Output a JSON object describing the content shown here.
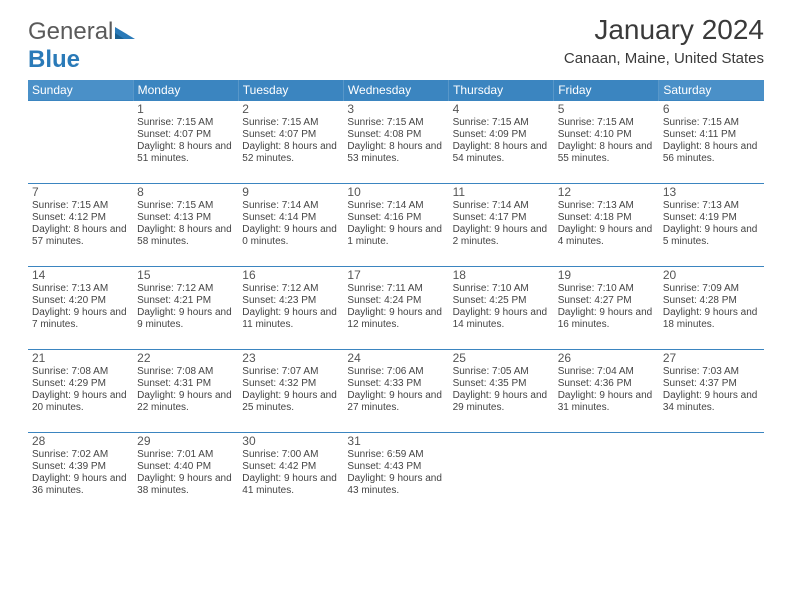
{
  "logo": {
    "text1": "General",
    "text2": "Blue"
  },
  "title": "January 2024",
  "subtitle": "Canaan, Maine, United States",
  "colors": {
    "header_outer": "#4a90c8",
    "header_inner": "#3b85c0",
    "row_border": "#3b85c0",
    "logo_gray": "#5a5a5a",
    "logo_blue": "#2a7ab8",
    "text": "#444444"
  },
  "day_headers": [
    "Sunday",
    "Monday",
    "Tuesday",
    "Wednesday",
    "Thursday",
    "Friday",
    "Saturday"
  ],
  "first_weekday": 1,
  "days": [
    {
      "n": "1",
      "sr": "7:15 AM",
      "ss": "4:07 PM",
      "dl": "8 hours and 51 minutes."
    },
    {
      "n": "2",
      "sr": "7:15 AM",
      "ss": "4:07 PM",
      "dl": "8 hours and 52 minutes."
    },
    {
      "n": "3",
      "sr": "7:15 AM",
      "ss": "4:08 PM",
      "dl": "8 hours and 53 minutes."
    },
    {
      "n": "4",
      "sr": "7:15 AM",
      "ss": "4:09 PM",
      "dl": "8 hours and 54 minutes."
    },
    {
      "n": "5",
      "sr": "7:15 AM",
      "ss": "4:10 PM",
      "dl": "8 hours and 55 minutes."
    },
    {
      "n": "6",
      "sr": "7:15 AM",
      "ss": "4:11 PM",
      "dl": "8 hours and 56 minutes."
    },
    {
      "n": "7",
      "sr": "7:15 AM",
      "ss": "4:12 PM",
      "dl": "8 hours and 57 minutes."
    },
    {
      "n": "8",
      "sr": "7:15 AM",
      "ss": "4:13 PM",
      "dl": "8 hours and 58 minutes."
    },
    {
      "n": "9",
      "sr": "7:14 AM",
      "ss": "4:14 PM",
      "dl": "9 hours and 0 minutes."
    },
    {
      "n": "10",
      "sr": "7:14 AM",
      "ss": "4:16 PM",
      "dl": "9 hours and 1 minute."
    },
    {
      "n": "11",
      "sr": "7:14 AM",
      "ss": "4:17 PM",
      "dl": "9 hours and 2 minutes."
    },
    {
      "n": "12",
      "sr": "7:13 AM",
      "ss": "4:18 PM",
      "dl": "9 hours and 4 minutes."
    },
    {
      "n": "13",
      "sr": "7:13 AM",
      "ss": "4:19 PM",
      "dl": "9 hours and 5 minutes."
    },
    {
      "n": "14",
      "sr": "7:13 AM",
      "ss": "4:20 PM",
      "dl": "9 hours and 7 minutes."
    },
    {
      "n": "15",
      "sr": "7:12 AM",
      "ss": "4:21 PM",
      "dl": "9 hours and 9 minutes."
    },
    {
      "n": "16",
      "sr": "7:12 AM",
      "ss": "4:23 PM",
      "dl": "9 hours and 11 minutes."
    },
    {
      "n": "17",
      "sr": "7:11 AM",
      "ss": "4:24 PM",
      "dl": "9 hours and 12 minutes."
    },
    {
      "n": "18",
      "sr": "7:10 AM",
      "ss": "4:25 PM",
      "dl": "9 hours and 14 minutes."
    },
    {
      "n": "19",
      "sr": "7:10 AM",
      "ss": "4:27 PM",
      "dl": "9 hours and 16 minutes."
    },
    {
      "n": "20",
      "sr": "7:09 AM",
      "ss": "4:28 PM",
      "dl": "9 hours and 18 minutes."
    },
    {
      "n": "21",
      "sr": "7:08 AM",
      "ss": "4:29 PM",
      "dl": "9 hours and 20 minutes."
    },
    {
      "n": "22",
      "sr": "7:08 AM",
      "ss": "4:31 PM",
      "dl": "9 hours and 22 minutes."
    },
    {
      "n": "23",
      "sr": "7:07 AM",
      "ss": "4:32 PM",
      "dl": "9 hours and 25 minutes."
    },
    {
      "n": "24",
      "sr": "7:06 AM",
      "ss": "4:33 PM",
      "dl": "9 hours and 27 minutes."
    },
    {
      "n": "25",
      "sr": "7:05 AM",
      "ss": "4:35 PM",
      "dl": "9 hours and 29 minutes."
    },
    {
      "n": "26",
      "sr": "7:04 AM",
      "ss": "4:36 PM",
      "dl": "9 hours and 31 minutes."
    },
    {
      "n": "27",
      "sr": "7:03 AM",
      "ss": "4:37 PM",
      "dl": "9 hours and 34 minutes."
    },
    {
      "n": "28",
      "sr": "7:02 AM",
      "ss": "4:39 PM",
      "dl": "9 hours and 36 minutes."
    },
    {
      "n": "29",
      "sr": "7:01 AM",
      "ss": "4:40 PM",
      "dl": "9 hours and 38 minutes."
    },
    {
      "n": "30",
      "sr": "7:00 AM",
      "ss": "4:42 PM",
      "dl": "9 hours and 41 minutes."
    },
    {
      "n": "31",
      "sr": "6:59 AM",
      "ss": "4:43 PM",
      "dl": "9 hours and 43 minutes."
    }
  ],
  "labels": {
    "sunrise": "Sunrise:",
    "sunset": "Sunset:",
    "daylight": "Daylight:"
  }
}
